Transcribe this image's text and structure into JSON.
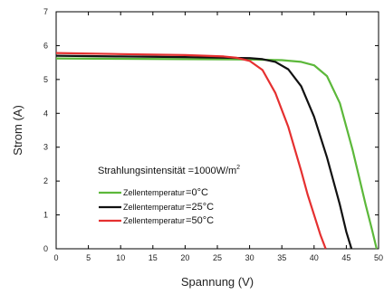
{
  "chart_data": {
    "type": "line",
    "xlabel": "Spannung (V)",
    "ylabel": "Strom (A)",
    "xlim": [
      0,
      50
    ],
    "ylim": [
      0,
      7
    ],
    "x_ticks": [
      "0",
      "5",
      "10",
      "15",
      "20",
      "25",
      "30",
      "35",
      "40",
      "45",
      "50"
    ],
    "y_ticks": [
      "0",
      "1",
      "2",
      "3",
      "4",
      "5",
      "6",
      "7"
    ],
    "grid": false,
    "legend": {
      "title": "Strahlungsintensität =1000W/m",
      "title_superscript": "2",
      "position": "lower-left"
    },
    "series": [
      {
        "name": "Zellentemperatur = 0°C",
        "label_prefix": "Zellentemperatur",
        "label_eq": "=",
        "label_value": "0",
        "label_unit": "°C",
        "color": "#5cb83a",
        "x": [
          0,
          10,
          20,
          30,
          35,
          38,
          40,
          42,
          44,
          46,
          47,
          48,
          49,
          49.7
        ],
        "y": [
          5.62,
          5.61,
          5.6,
          5.59,
          5.57,
          5.52,
          5.42,
          5.1,
          4.3,
          2.9,
          2.1,
          1.3,
          0.55,
          0
        ]
      },
      {
        "name": "Zellentemperatur = 25°C",
        "label_prefix": "Zellentemperatur",
        "label_eq": "=",
        "label_value": "25",
        "label_unit": "°C",
        "color": "#111111",
        "x": [
          0,
          10,
          20,
          30,
          32,
          34,
          36,
          38,
          40,
          42,
          43,
          44,
          45,
          45.8
        ],
        "y": [
          5.7,
          5.68,
          5.66,
          5.63,
          5.6,
          5.52,
          5.3,
          4.8,
          3.9,
          2.7,
          2.0,
          1.3,
          0.5,
          0
        ]
      },
      {
        "name": "Zellentemperatur = 50°C",
        "label_prefix": "Zellentemperatur",
        "label_eq": "=",
        "label_value": "50",
        "label_unit": "°C",
        "color": "#e53030",
        "x": [
          0,
          10,
          20,
          26,
          28,
          30,
          32,
          34,
          36,
          38,
          39,
          40,
          41,
          41.8
        ],
        "y": [
          5.78,
          5.75,
          5.72,
          5.68,
          5.64,
          5.55,
          5.28,
          4.6,
          3.6,
          2.3,
          1.6,
          1.0,
          0.4,
          0
        ]
      }
    ]
  }
}
